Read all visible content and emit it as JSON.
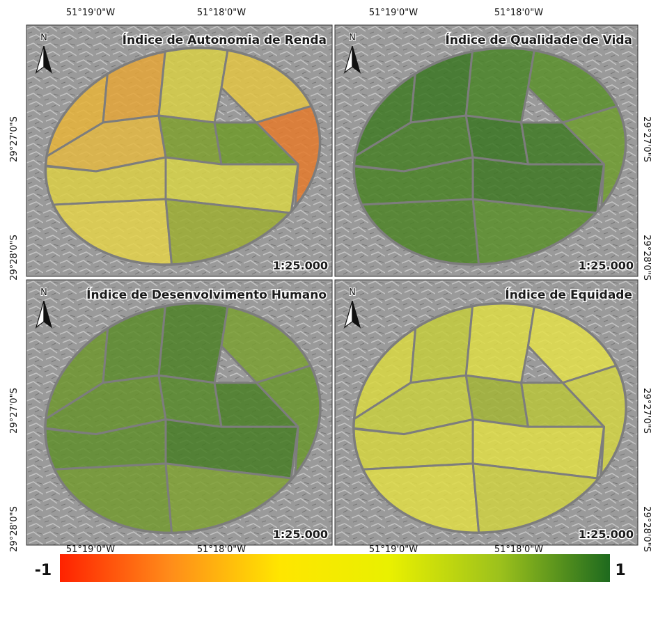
{
  "x_labels": [
    "51°19'0\"W",
    "51°18'0\"W"
  ],
  "y_labels": [
    "29°27'0\"S",
    "29°28'0\"S"
  ],
  "panels": [
    {
      "title": "Índice de Autonomia de Renda",
      "north": "N",
      "scale": "1:25.000",
      "region_colors": [
        "#e8b43a",
        "#e5a638",
        "#d8cf45",
        "#e3c443",
        "#e57a2c",
        "#e4b842",
        "#7fa02f",
        "#6e9a2a",
        "#dccf45",
        "#d7d447",
        "#e4d24a",
        "#9eae33"
      ]
    },
    {
      "title": "Índice de Qualidade de Vida",
      "north": "N",
      "scale": "1:25.000",
      "region_colors": [
        "#3f7a25",
        "#3b7723",
        "#4a8528",
        "#5a902c",
        "#6e9c2f",
        "#477f26",
        "#3a7522",
        "#3f7a24",
        "#4a8226",
        "#3e7823",
        "#4d8427",
        "#5b8f2b"
      ]
    },
    {
      "title": "Índice de Desenvolvimento Humano",
      "north": "N",
      "scale": "1:25.000",
      "region_colors": [
        "#6e962f",
        "#5c8c2b",
        "#4d8127",
        "#7aa032",
        "#6a962e",
        "#66922d",
        "#578a2a",
        "#4a7f26",
        "#5f8e2b",
        "#467c25",
        "#739a30",
        "#7fa133"
      ]
    },
    {
      "title": "Índice de Equidade",
      "north": "N",
      "scale": "1:25.000",
      "region_colors": [
        "#d9d842",
        "#c4cc3d",
        "#dedd45",
        "#e4e04a",
        "#d2d343",
        "#c8cf3f",
        "#a3b536",
        "#b9c43b",
        "#d5d541",
        "#e1de47",
        "#e0dd46",
        "#cfd142"
      ]
    }
  ],
  "colorbar": {
    "min": -1,
    "max": 1,
    "colors": [
      "#ff2200",
      "#ff8c1a",
      "#ffe600",
      "#e9f000",
      "#9cc11c",
      "#1e6a1e"
    ]
  }
}
